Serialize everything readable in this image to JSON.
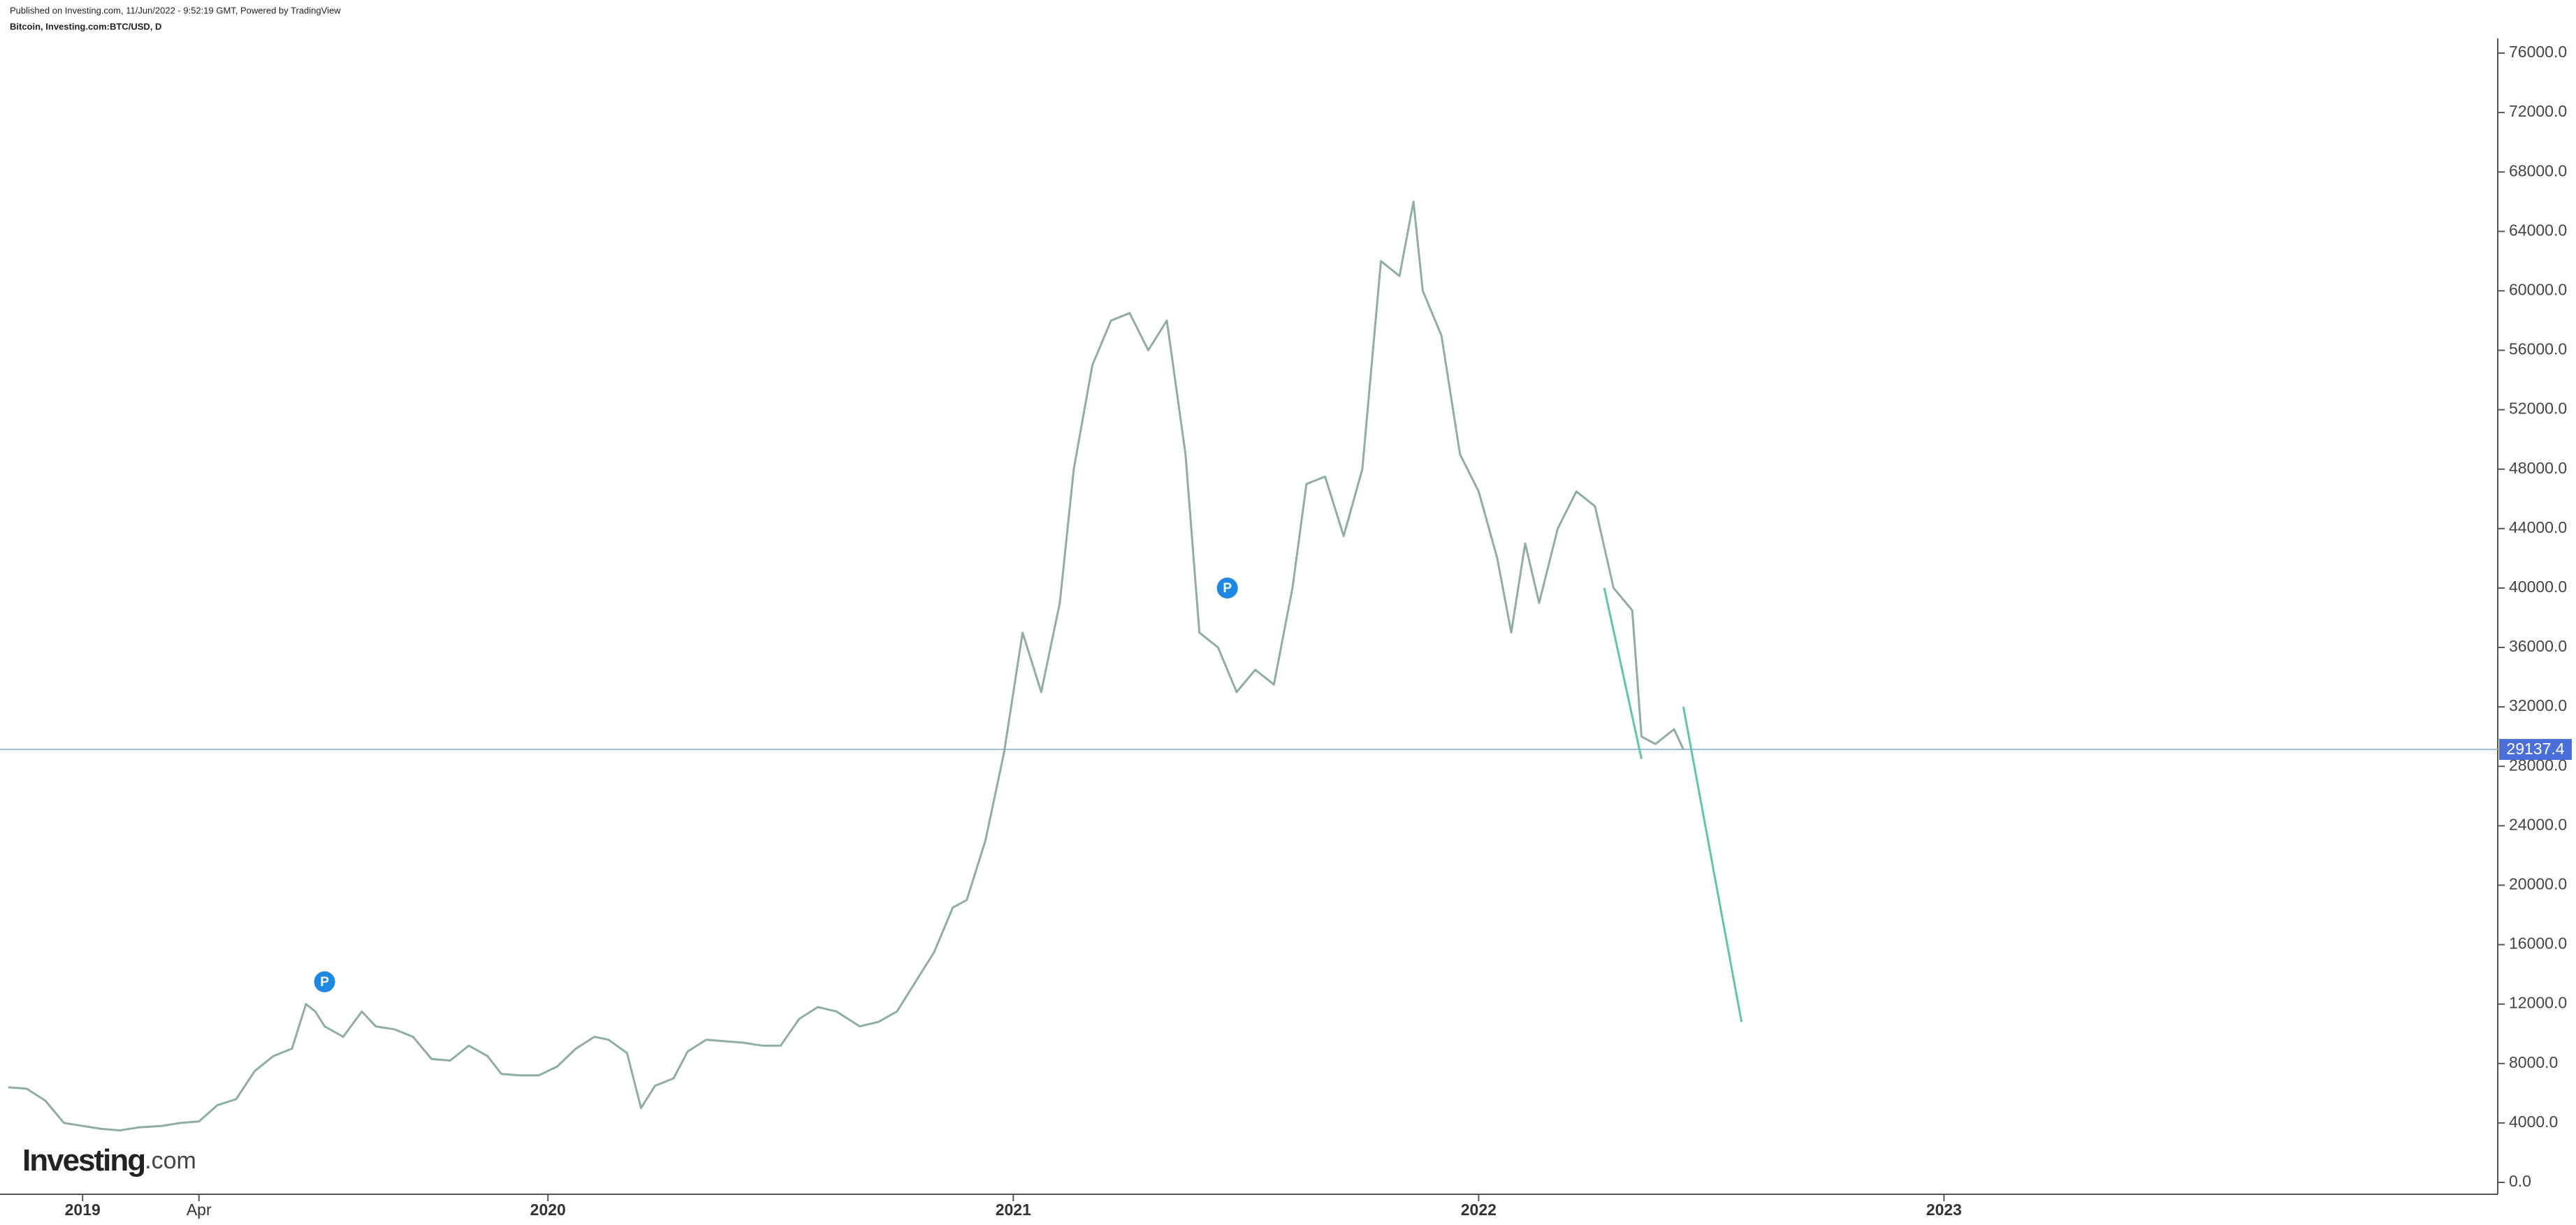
{
  "header": {
    "published": "Published on Investing.com, 11/Jun/2022 - 9:52:19 GMT, Powered by TradingView",
    "symbol": "Bitcoin, Investing.com:BTC/USD, D"
  },
  "logo": {
    "main": "Investing",
    "suffix": ".com"
  },
  "chart_data": {
    "type": "line",
    "color": "#8fae9f",
    "x": [
      2018.84,
      2018.88,
      2018.92,
      2018.96,
      2019.0,
      2019.04,
      2019.08,
      2019.12,
      2019.17,
      2019.21,
      2019.25,
      2019.29,
      2019.33,
      2019.37,
      2019.41,
      2019.45,
      2019.48,
      2019.5,
      2019.52,
      2019.56,
      2019.6,
      2019.63,
      2019.67,
      2019.71,
      2019.75,
      2019.79,
      2019.83,
      2019.87,
      2019.9,
      2019.94,
      2019.98,
      2020.02,
      2020.06,
      2020.1,
      2020.13,
      2020.17,
      2020.2,
      2020.23,
      2020.27,
      2020.3,
      2020.34,
      2020.38,
      2020.42,
      2020.46,
      2020.5,
      2020.54,
      2020.58,
      2020.62,
      2020.67,
      2020.71,
      2020.75,
      2020.79,
      2020.83,
      2020.87,
      2020.9,
      2020.94,
      2020.98,
      2021.02,
      2021.06,
      2021.1,
      2021.13,
      2021.17,
      2021.21,
      2021.25,
      2021.29,
      2021.33,
      2021.37,
      2021.4,
      2021.44,
      2021.48,
      2021.52,
      2021.56,
      2021.6,
      2021.63,
      2021.67,
      2021.71,
      2021.75,
      2021.79,
      2021.83,
      2021.86,
      2021.88,
      2021.92,
      2021.96,
      2022.0,
      2022.04,
      2022.07,
      2022.1,
      2022.13,
      2022.17,
      2022.21,
      2022.25,
      2022.29,
      2022.33,
      2022.35,
      2022.38,
      2022.42,
      2022.44
    ],
    "values": [
      6400,
      6300,
      5500,
      4000,
      3800,
      3600,
      3500,
      3700,
      3800,
      4000,
      4100,
      5200,
      5600,
      7500,
      8500,
      9000,
      12000,
      11500,
      10500,
      9800,
      11500,
      10500,
      10300,
      9800,
      8300,
      8200,
      9200,
      8500,
      7300,
      7200,
      7200,
      7800,
      9000,
      9800,
      9600,
      8700,
      5000,
      6500,
      7000,
      8800,
      9600,
      9500,
      9400,
      9200,
      9200,
      11000,
      11800,
      11500,
      10500,
      10800,
      11500,
      13500,
      15500,
      18500,
      19000,
      23000,
      28900,
      37000,
      33000,
      39000,
      48000,
      55000,
      58000,
      58500,
      56000,
      58000,
      49000,
      37000,
      36000,
      33000,
      34500,
      33500,
      40000,
      47000,
      47500,
      43500,
      48000,
      62000,
      61000,
      66000,
      60000,
      57000,
      49000,
      46500,
      42000,
      37000,
      43000,
      39000,
      44000,
      46500,
      45500,
      40000,
      38500,
      30000,
      29500,
      30500,
      29137.4
    ],
    "last_price": 29137.4,
    "last_price_color": "#4a6fd8",
    "markers": [
      {
        "label": "P",
        "x": 2019.52,
        "value": 13500
      },
      {
        "label": "P",
        "x": 2021.46,
        "value": 40000
      }
    ],
    "trend_lines": [
      {
        "x": [
          2022.27,
          2022.35
        ],
        "values": [
          40000,
          28500
        ]
      },
      {
        "x": [
          2022.44,
          2022.565
        ],
        "values": [
          32000,
          10800
        ]
      }
    ],
    "trend_color": "#5fc4a8",
    "xlim": [
      2018.83,
      2024.19
    ],
    "xticks": [
      {
        "value": 2019,
        "label": "2019"
      },
      {
        "value": 2019.25,
        "label": "Apr"
      },
      {
        "value": 2020,
        "label": "2020"
      },
      {
        "value": 2021,
        "label": "2021"
      },
      {
        "value": 2022,
        "label": "2022"
      },
      {
        "value": 2023,
        "label": "2023"
      }
    ],
    "ylim": [
      -800,
      76800
    ],
    "yticks": [
      {
        "value": 0,
        "label": "0.0"
      },
      {
        "value": 4000,
        "label": "4000.0"
      },
      {
        "value": 8000,
        "label": "8000.0"
      },
      {
        "value": 12000,
        "label": "12000.0"
      },
      {
        "value": 16000,
        "label": "16000.0"
      },
      {
        "value": 20000,
        "label": "20000.0"
      },
      {
        "value": 24000,
        "label": "24000.0"
      },
      {
        "value": 28000,
        "label": "28000.0"
      },
      {
        "value": 32000,
        "label": "32000.0"
      },
      {
        "value": 36000,
        "label": "36000.0"
      },
      {
        "value": 40000,
        "label": "40000.0"
      },
      {
        "value": 44000,
        "label": "44000.0"
      },
      {
        "value": 48000,
        "label": "48000.0"
      },
      {
        "value": 52000,
        "label": "52000.0"
      },
      {
        "value": 56000,
        "label": "56000.0"
      },
      {
        "value": 60000,
        "label": "60000.0"
      },
      {
        "value": 64000,
        "label": "64000.0"
      },
      {
        "value": 68000,
        "label": "68000.0"
      },
      {
        "value": 72000,
        "label": "72000.0"
      },
      {
        "value": 76000,
        "label": "76000.0"
      }
    ]
  }
}
